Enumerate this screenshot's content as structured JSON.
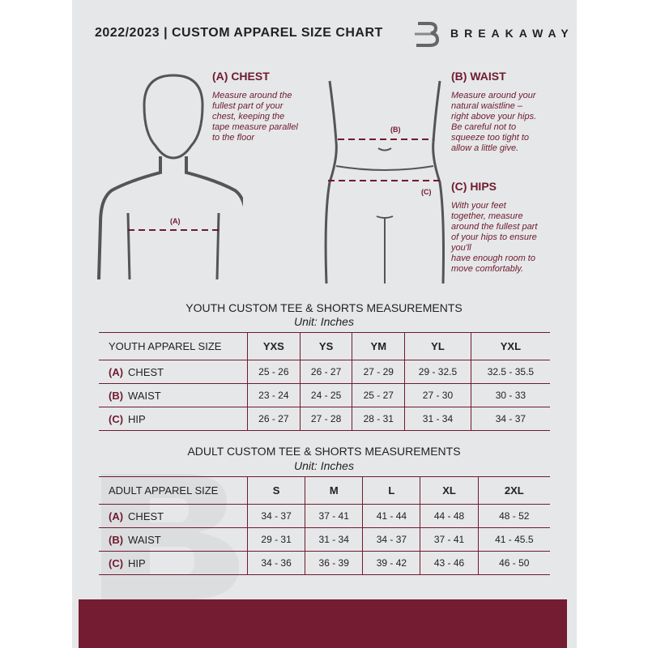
{
  "header": {
    "title": "2022/2023 | CUSTOM APPAREL SIZE CHART",
    "brand": "BREAKAWAY",
    "logo_letter": "B"
  },
  "colors": {
    "accent": "#6e1b2f",
    "background": "#e6e7e8",
    "footer": "#741c31"
  },
  "guide": {
    "chest": {
      "heading": "(A) CHEST",
      "text": [
        "Measure around the",
        "fullest part of your",
        "chest, keeping the",
        "tape measure parallel",
        "to the floor"
      ],
      "marker": "(A)"
    },
    "waist": {
      "heading": "(B) WAIST",
      "text": [
        "Measure around your",
        "natural waistline –",
        "right above your hips.",
        "Be careful not to",
        "squeeze too tight to",
        "allow a little give."
      ],
      "marker": "(B)"
    },
    "hips": {
      "heading": "(C) HIPS",
      "text": [
        "With your feet",
        "together, measure",
        "around the fullest part",
        "of your hips to ensure",
        "you'll",
        "have enough room to",
        "move comfortably."
      ],
      "marker": "(C)"
    }
  },
  "youth": {
    "title": "YOUTH CUSTOM TEE & SHORTS MEASUREMENTS",
    "unit": "Unit: Inches",
    "size_label": "YOUTH APPAREL SIZE",
    "sizes": [
      "YXS",
      "YS",
      "YM",
      "YL",
      "YXL"
    ],
    "rows": [
      {
        "letter": "(A)",
        "label": "CHEST",
        "values": [
          "25 - 26",
          "26 - 27",
          "27 - 29",
          "29 - 32.5",
          "32.5 - 35.5"
        ]
      },
      {
        "letter": "(B)",
        "label": "WAIST",
        "values": [
          "23 - 24",
          "24 - 25",
          "25 - 27",
          "27 - 30",
          "30 - 33"
        ]
      },
      {
        "letter": "(C)",
        "label": "HIP",
        "values": [
          "26 - 27",
          "27 - 28",
          "28 - 31",
          "31 - 34",
          "34 - 37"
        ]
      }
    ]
  },
  "adult": {
    "title": "ADULT CUSTOM TEE & SHORTS MEASUREMENTS",
    "unit": "Unit: Inches",
    "size_label": "ADULT APPAREL SIZE",
    "sizes": [
      "S",
      "M",
      "L",
      "XL",
      "2XL"
    ],
    "rows": [
      {
        "letter": "(A)",
        "label": "CHEST",
        "values": [
          "34 - 37",
          "37 - 41",
          "41 - 44",
          "44 - 48",
          "48 - 52"
        ]
      },
      {
        "letter": "(B)",
        "label": "WAIST",
        "values": [
          "29 - 31",
          "31 - 34",
          "34 - 37",
          "37 - 41",
          "41 - 45.5"
        ]
      },
      {
        "letter": "(C)",
        "label": "HIP",
        "values": [
          "34 - 36",
          "36 - 39",
          "39 - 42",
          "43 - 46",
          "46 - 50"
        ]
      }
    ]
  }
}
